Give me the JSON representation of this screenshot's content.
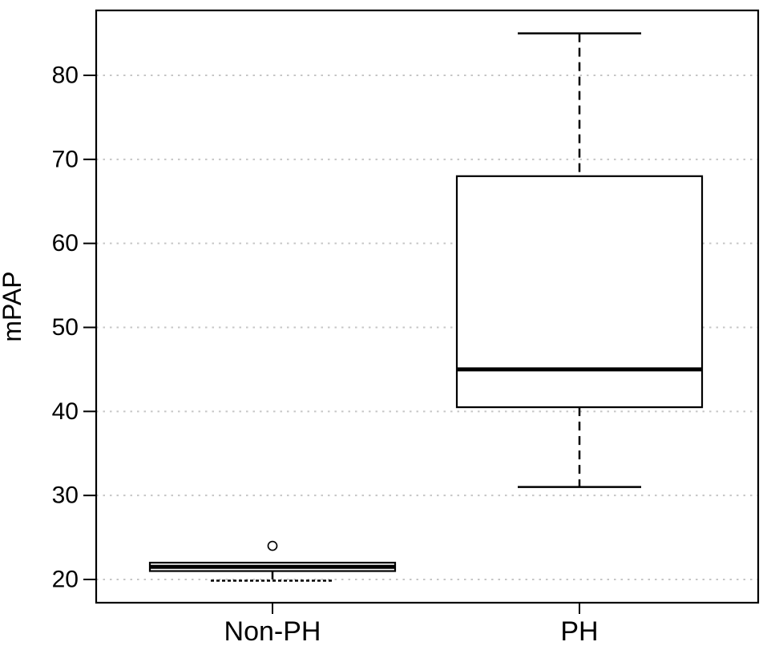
{
  "figure": {
    "background": "#ffffff"
  },
  "colors": {
    "line": "#000000",
    "grid": "#c6c6c6",
    "text": "#000000",
    "box_fill": "#ffffff"
  },
  "chart_data": {
    "type": "boxplot",
    "title": "",
    "xlabel": "",
    "ylabel": "mPAP",
    "categories": [
      "Non-PH",
      "PH"
    ],
    "y_ticks": [
      20,
      30,
      40,
      50,
      60,
      70,
      80
    ],
    "ylim": [
      17,
      88
    ],
    "grid": {
      "horizontal": true,
      "style": "dotted"
    },
    "legend": "none",
    "series": [
      {
        "name": "Non-PH",
        "whisker_low": 20,
        "q1": 21,
        "median": 21.5,
        "q3": 22,
        "whisker_high": 22,
        "outliers": [
          24
        ],
        "low_staple_dashed": true
      },
      {
        "name": "PH",
        "whisker_low": 31,
        "q1": 40.5,
        "median": 45,
        "q3": 68,
        "whisker_high": 85,
        "outliers": [],
        "low_staple_dashed": false
      }
    ]
  }
}
